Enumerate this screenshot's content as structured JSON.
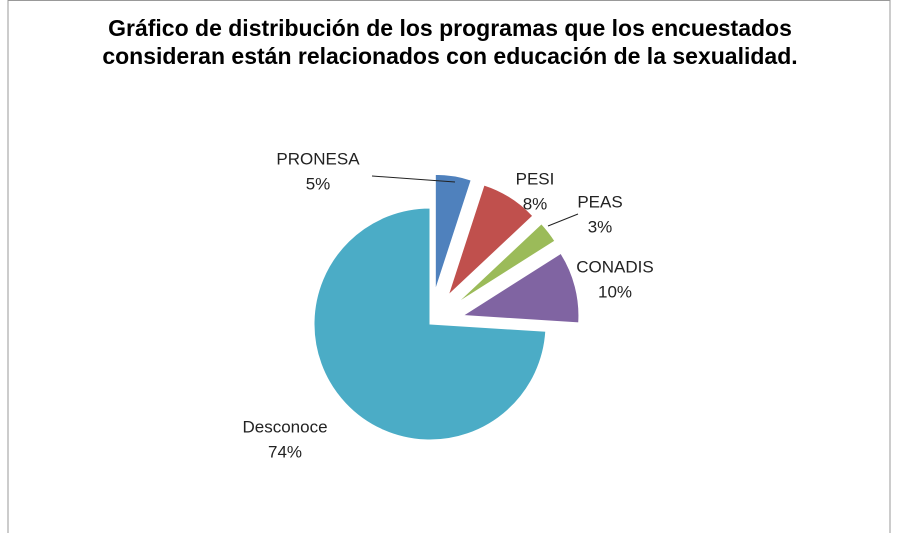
{
  "chart_data": {
    "type": "pie",
    "title": "Gráfico de distribución de los programas que los encuestados consideran están relacionados con educación de la sexualidad.",
    "categories": [
      "PRONESA",
      "PESI",
      "PEAS",
      "CONADIS",
      "Desconoce"
    ],
    "values": [
      5,
      8,
      3,
      10,
      74
    ],
    "value_labels": [
      "5%",
      "8%",
      "3%",
      "10%",
      "74%"
    ],
    "colors": [
      "#4f81bd",
      "#c0504d",
      "#9bbb59",
      "#8064a2",
      "#4bacc6"
    ]
  }
}
